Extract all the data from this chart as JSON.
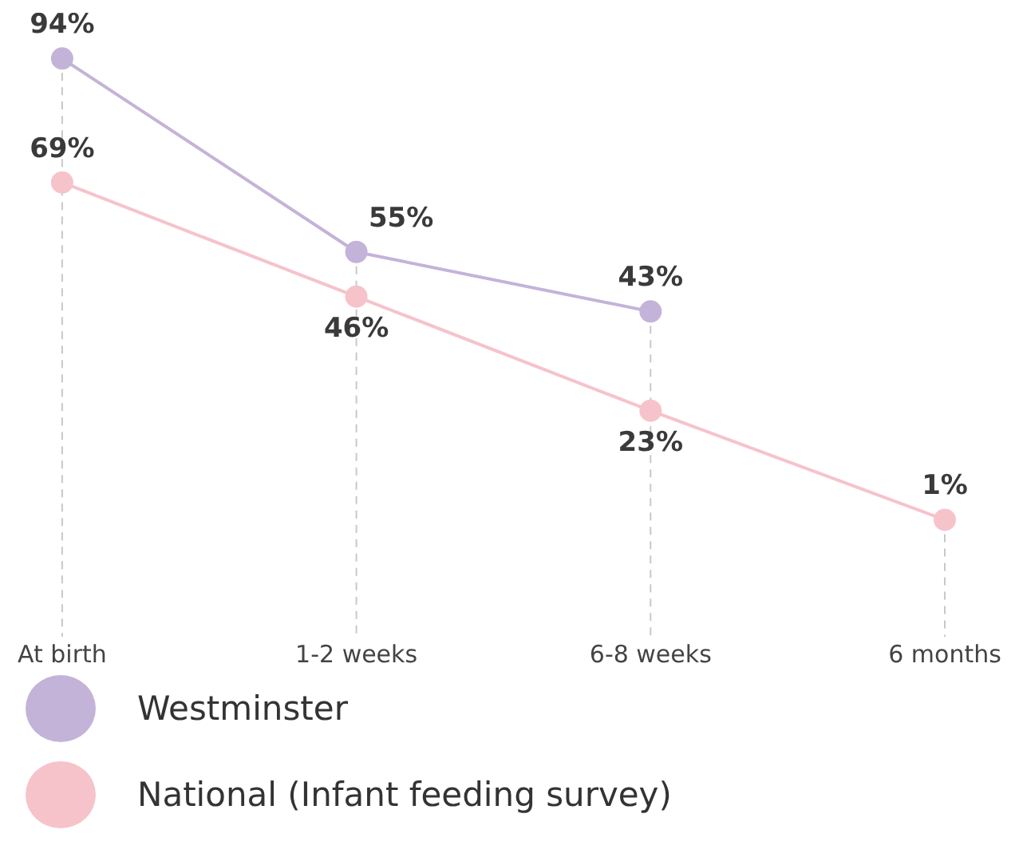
{
  "chart_data": {
    "type": "line",
    "categories": [
      "At birth",
      "1-2 weeks",
      "6-8 weeks",
      "6 months"
    ],
    "tick_labels": "x",
    "series": [
      {
        "name": "Westminster",
        "color": "#c4b3d8",
        "values": [
          94,
          55,
          43,
          null
        ],
        "value_labels": [
          "94%",
          "55%",
          "43%",
          null
        ]
      },
      {
        "name": "National (Infant feeding survey)",
        "color": "#f6c3cb",
        "values": [
          69,
          46,
          23,
          1
        ],
        "value_labels": [
          "69%",
          "46%",
          "23%",
          "1%"
        ]
      }
    ],
    "marker": "circle",
    "line_style": "solid",
    "grid": "x",
    "legend": "bottom left"
  }
}
